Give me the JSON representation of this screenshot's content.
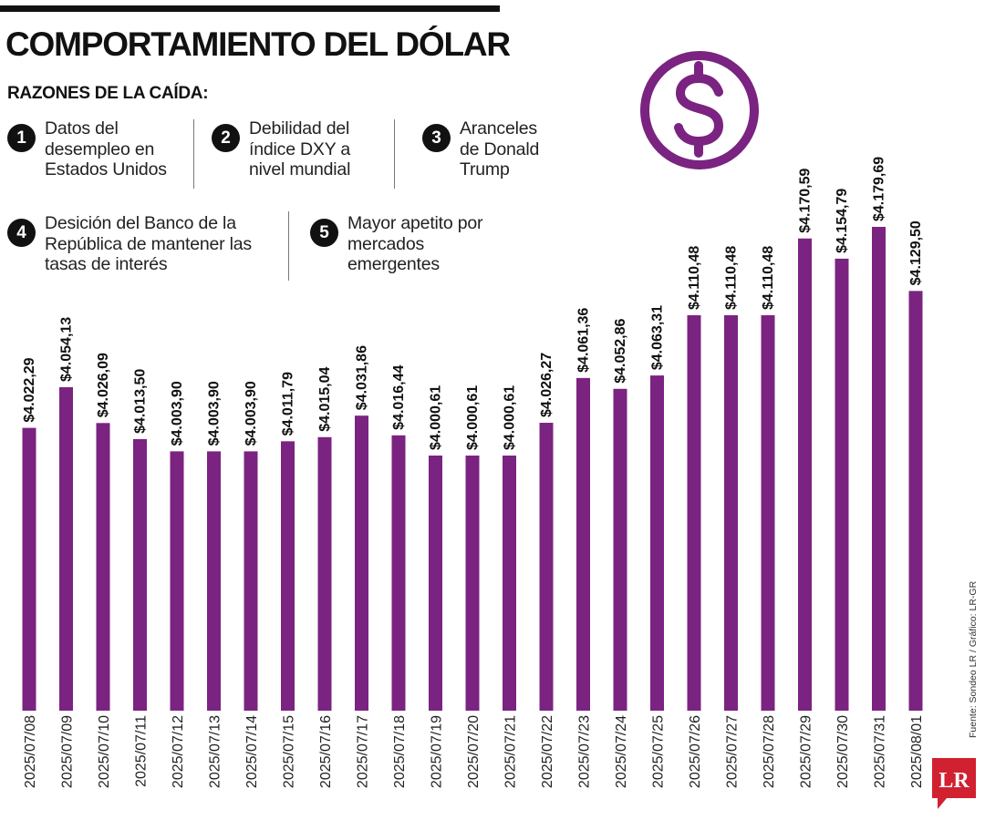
{
  "header": {
    "title": "COMPORTAMIENTO DEL DÓLAR",
    "subtitle": "RAZONES DE LA CAÍDA:"
  },
  "reasons": [
    {
      "number": "1",
      "text": "Datos del\ndesempleo en\nEstados Unidos"
    },
    {
      "number": "2",
      "text": "Debilidad del\níndice DXY a\nnivel mundial"
    },
    {
      "number": "3",
      "text": "Aranceles\nde Donald\nTrump"
    },
    {
      "number": "4",
      "text": "Desición del Banco de la\nRepública de mantener las\ntasas de interés"
    },
    {
      "number": "5",
      "text": "Mayor apetito por\nmercados\nemergentes"
    }
  ],
  "icons": {
    "dollar": "dollar-circle-icon",
    "logo": "lr-logo"
  },
  "colors": {
    "bar": "#7b2380",
    "text": "#1a1a1a",
    "icon": "#7b2380",
    "logo": "#d1202f"
  },
  "source": "Fuente: Sondeo LR / Gráfico: LR-GR",
  "logo_text": "LR",
  "chart_data": {
    "type": "bar",
    "categories": [
      "2025/07/08",
      "2025/07/09",
      "2025/07/10",
      "2025/07/11",
      "2025/07/12",
      "2025/07/13",
      "2025/07/14",
      "2025/07/15",
      "2025/07/16",
      "2025/07/17",
      "2025/07/18",
      "2025/07/19",
      "2025/07/20",
      "2025/07/21",
      "2025/07/22",
      "2025/07/23",
      "2025/07/24",
      "2025/07/25",
      "2025/07/26",
      "2025/07/27",
      "2025/07/28",
      "2025/07/29",
      "2025/07/30",
      "2025/07/31",
      "2025/08/01"
    ],
    "values": [
      4022.29,
      4054.13,
      4026.09,
      4013.5,
      4003.9,
      4003.9,
      4003.9,
      4011.79,
      4015.04,
      4031.86,
      4016.44,
      4000.61,
      4000.61,
      4000.61,
      4026.27,
      4061.36,
      4052.86,
      4063.31,
      4110.48,
      4110.48,
      4110.48,
      4170.59,
      4154.79,
      4179.69,
      4129.5
    ],
    "labels": [
      "$4.022,29",
      "$4.054,13",
      "$4.026,09",
      "$4.013,50",
      "$4.003,90",
      "$4.003,90",
      "$4.003,90",
      "$4.011,79",
      "$4.015,04",
      "$4.031,86",
      "$4.016,44",
      "$4.000,61",
      "$4.000,61",
      "$4.000,61",
      "$4.026,27",
      "$4.061,36",
      "$4.052,86",
      "$4.063,31",
      "$4.110,48",
      "$4.110,48",
      "$4.110,48",
      "$4.170,59",
      "$4.154,79",
      "$4.179,69",
      "$4.129,50"
    ],
    "grid": false,
    "legend": "none"
  }
}
